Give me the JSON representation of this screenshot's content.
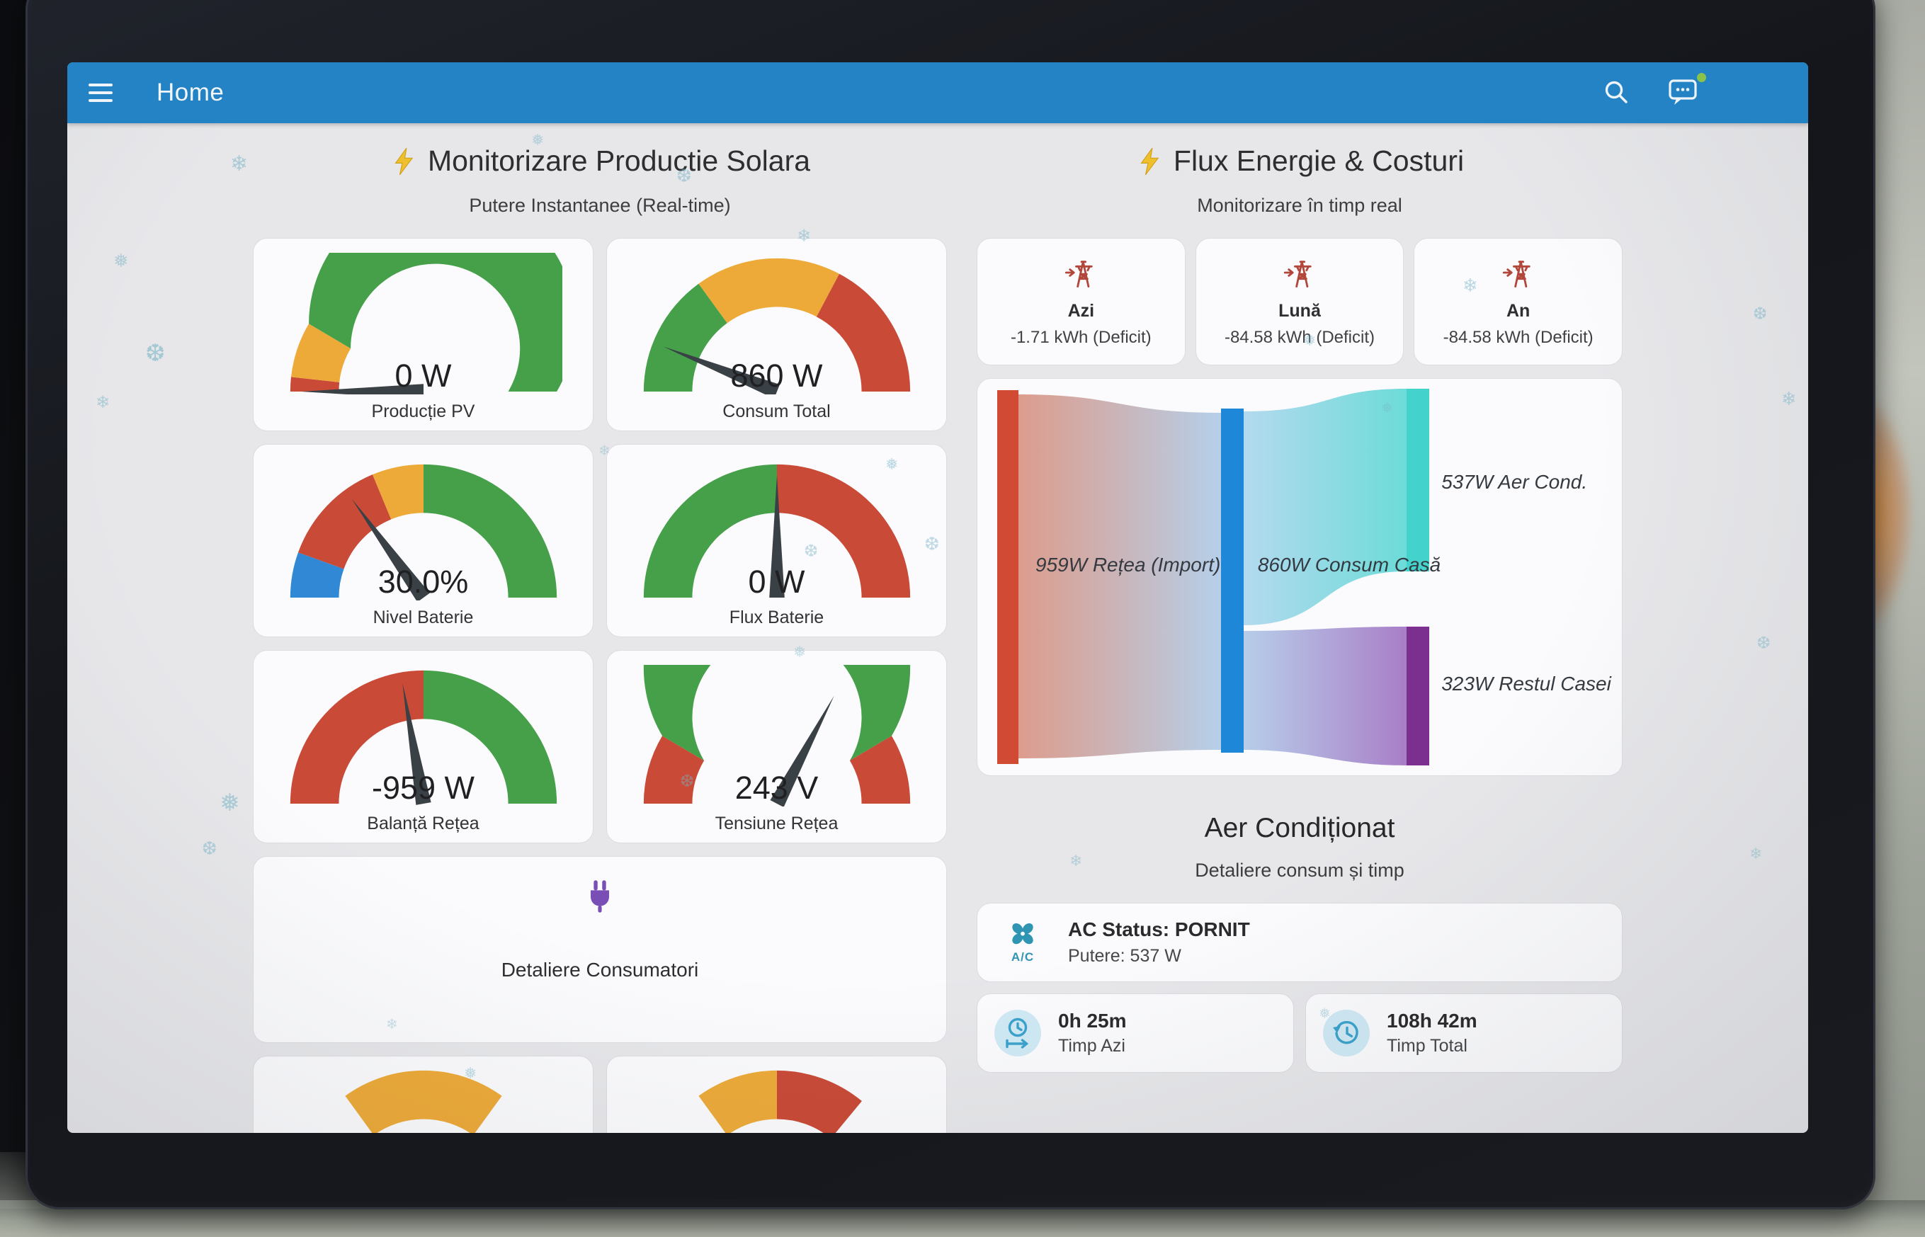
{
  "header": {
    "title": "Home",
    "menu_icon": "hamburger-menu",
    "search_icon": "magnifier",
    "assist_icon": "chat-bubble-dots",
    "assist_status_color": "#8bc34a"
  },
  "theme": {
    "header_color": "#2383c4",
    "screen_background": "#e7e7ea",
    "card_background": "#fbfbfd",
    "gauge_green": "#45a049",
    "gauge_amber": "#edaa39",
    "gauge_red": "#c94a37",
    "gauge_blue": "#3188d4",
    "needle_color": "#3a4146",
    "snowflake_color": "#79b4c6",
    "stat_icon_color": "#b2463a",
    "plug_icon_color": "#7a4fb5",
    "ac_icon_color": "#2f95b3",
    "time_icon_color": "#3ba2cc"
  },
  "solar_section": {
    "icon": "lightning-bolt",
    "title": "Monitorizare Productie Solara",
    "subtitle": "Putere Instantanee (Real-time)",
    "gauges": [
      {
        "value": "0 W",
        "label": "Producție PV",
        "needle": 0.0,
        "segments": [
          [
            "red",
            0,
            0.035
          ],
          [
            "amber",
            0.035,
            0.17
          ],
          [
            "green",
            0.17,
            1
          ]
        ]
      },
      {
        "value": "860 W",
        "label": "Consum Total",
        "needle": 0.12,
        "segments": [
          [
            "green",
            0,
            0.3
          ],
          [
            "amber",
            0.3,
            0.655
          ],
          [
            "red",
            0.655,
            1
          ]
        ]
      },
      {
        "value": "30.0%",
        "label": "Nivel Baterie",
        "needle": 0.3,
        "segments": [
          [
            "blue",
            0,
            0.11
          ],
          [
            "red",
            0.11,
            0.375
          ],
          [
            "amber",
            0.375,
            0.5
          ],
          [
            "green",
            0.5,
            1
          ]
        ]
      },
      {
        "value": "0 W",
        "label": "Flux Baterie",
        "needle": 0.5,
        "segments": [
          [
            "green",
            0,
            0.5
          ],
          [
            "red",
            0.5,
            1
          ]
        ]
      },
      {
        "value": "-959 W",
        "label": "Balanță Rețea",
        "needle": 0.445,
        "segments": [
          [
            "red",
            0,
            0.5
          ],
          [
            "green",
            0.5,
            1
          ]
        ]
      },
      {
        "value": "243 V",
        "label": "Tensiune Rețea",
        "needle": 0.655,
        "segments": [
          [
            "red",
            0,
            0.17
          ],
          [
            "green",
            0.17,
            0.83
          ],
          [
            "red",
            0.83,
            1
          ]
        ]
      }
    ],
    "consumers_card_title": "Detaliere Consumatori",
    "consumers_icon": "power-plug",
    "partial_gauges": [
      {
        "segments": [
          [
            "amber",
            0.3,
            0.7
          ]
        ]
      },
      {
        "segments": [
          [
            "amber",
            0.3,
            0.5
          ],
          [
            "red",
            0.5,
            0.72
          ]
        ]
      }
    ]
  },
  "energy_section": {
    "icon": "lightning-bolt",
    "title": "Flux Energie & Costuri",
    "subtitle": "Monitorizare în timp real",
    "stats": [
      {
        "icon": "transmission-tower-import",
        "label": "Azi",
        "value": "-1.71 kWh (Deficit)"
      },
      {
        "icon": "transmission-tower-import",
        "label": "Lună",
        "value": "-84.58 kWh (Deficit)"
      },
      {
        "icon": "transmission-tower-import",
        "label": "An",
        "value": "-84.58 kWh (Deficit)"
      }
    ],
    "sankey": {
      "nodes": [
        {
          "name": "retea-import",
          "label": "959W Rețea (Import)",
          "color": "#d14a33"
        },
        {
          "name": "consum-casa",
          "label": "860W Consum Casă",
          "color": "#1e87d8"
        },
        {
          "name": "aer-cond",
          "label": "537W Aer Cond.",
          "color": "#44d3cc"
        },
        {
          "name": "restul-casei",
          "label": "323W Restul Casei",
          "color": "#7b2f8f"
        }
      ]
    },
    "ac": {
      "title": "Aer Condiționat",
      "subtitle": "Detaliere consum și timp",
      "icon": "ac-fan",
      "icon_label": "A/C",
      "status_primary": "AC Status: PORNIT",
      "status_secondary": "Putere: 537 W",
      "time_cards": [
        {
          "icon": "timer-clock",
          "value": "0h 25m",
          "label": "Timp Azi"
        },
        {
          "icon": "history-clock",
          "value": "108h 42m",
          "label": "Timp Total"
        }
      ]
    }
  },
  "chart_data": [
    {
      "type": "gauge",
      "title": "Producție PV",
      "value": 0,
      "unit": "W"
    },
    {
      "type": "gauge",
      "title": "Consum Total",
      "value": 860,
      "unit": "W"
    },
    {
      "type": "gauge",
      "title": "Nivel Baterie",
      "value": 30.0,
      "unit": "%"
    },
    {
      "type": "gauge",
      "title": "Flux Baterie",
      "value": 0,
      "unit": "W"
    },
    {
      "type": "gauge",
      "title": "Balanță Rețea",
      "value": -959,
      "unit": "W"
    },
    {
      "type": "gauge",
      "title": "Tensiune Rețea",
      "value": 243,
      "unit": "V"
    },
    {
      "type": "sankey",
      "title": "Flux Energie",
      "nodes": [
        "Rețea (Import)",
        "Consum Casă",
        "Aer Cond.",
        "Restul Casei"
      ],
      "links": [
        {
          "source": "Rețea (Import)",
          "target": "Consum Casă",
          "value_w": 959
        },
        {
          "source": "Consum Casă",
          "target": "Aer Cond.",
          "value_w": 537
        },
        {
          "source": "Consum Casă",
          "target": "Restul Casei",
          "value_w": 323
        }
      ]
    }
  ]
}
